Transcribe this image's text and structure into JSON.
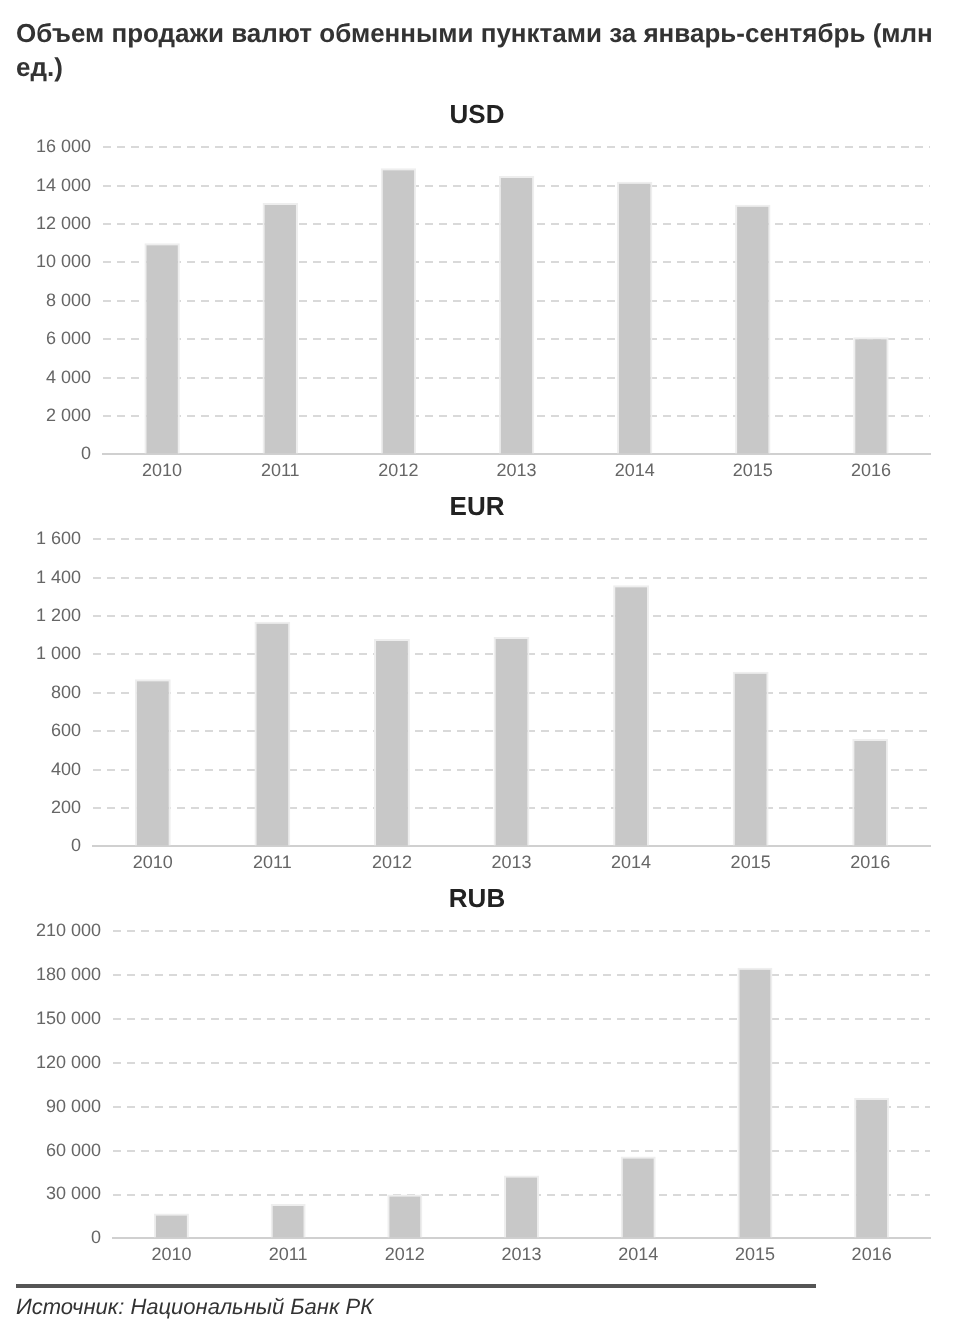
{
  "chart_data": [
    {
      "type": "other",
      "title": "Объем продажи валют обменными пунктами за январь-сентябрь (млн  ед.)"
    },
    {
      "type": "bar",
      "title": "USD",
      "categories": [
        "2010",
        "2011",
        "2012",
        "2013",
        "2014",
        "2015",
        "2016"
      ],
      "values": [
        11000,
        13100,
        14900,
        14500,
        14200,
        13000,
        6100
      ],
      "color": "#c8c8c8",
      "ylim": [
        0,
        16000
      ],
      "yticks": [
        {
          "value": 0,
          "label": "0"
        },
        {
          "value": 2000,
          "label": "2 000"
        },
        {
          "value": 4000,
          "label": "4 000"
        },
        {
          "value": 6000,
          "label": "6 000"
        },
        {
          "value": 8000,
          "label": "8 000"
        },
        {
          "value": 10000,
          "label": "10 000"
        },
        {
          "value": 12000,
          "label": "12 000"
        },
        {
          "value": 14000,
          "label": "14 000"
        },
        {
          "value": 16000,
          "label": "16 000"
        }
      ],
      "grid": "y",
      "legend": false
    },
    {
      "type": "bar",
      "title": "EUR",
      "categories": [
        "2010",
        "2011",
        "2012",
        "2013",
        "2014",
        "2015",
        "2016"
      ],
      "values": [
        870,
        1170,
        1080,
        1090,
        1360,
        910,
        560
      ],
      "color": "#c8c8c8",
      "ylim": [
        0,
        1600
      ],
      "yticks": [
        0,
        200,
        400,
        600,
        800,
        {
          "value": 1000,
          "label": "1 000"
        },
        {
          "value": 1200,
          "label": "1 200"
        },
        {
          "value": 1400,
          "label": "1 400"
        },
        {
          "value": 1600,
          "label": "1 600"
        }
      ],
      "grid": "y",
      "legend": false
    },
    {
      "type": "bar",
      "title": "RUB",
      "categories": [
        "2010",
        "2011",
        "2012",
        "2013",
        "2014",
        "2015",
        "2016"
      ],
      "values": [
        17000,
        23500,
        30000,
        43000,
        56000,
        185000,
        96000
      ],
      "color": "#c8c8c8",
      "ylim": [
        0,
        210000
      ],
      "yticks": [
        {
          "value": 0,
          "label": "0"
        },
        {
          "value": 30000,
          "label": "30 000"
        },
        {
          "value": 60000,
          "label": "60 000"
        },
        {
          "value": 90000,
          "label": "90 000"
        },
        {
          "value": 120000,
          "label": "120 000"
        },
        {
          "value": 150000,
          "label": "150 000"
        },
        {
          "value": 180000,
          "label": "180 000"
        },
        {
          "value": 210000,
          "label": "210 000"
        }
      ],
      "grid": "y",
      "legend": false,
      "annotations": [
        "Источник:  Национальный Банк РК"
      ]
    }
  ]
}
